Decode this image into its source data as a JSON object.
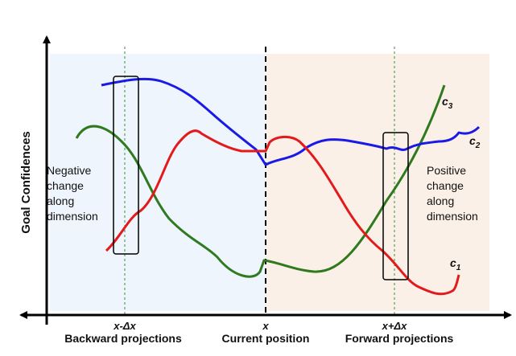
{
  "colors": {
    "backward_region": "#eef5fc",
    "forward_region": "#fbf0e7",
    "c1": "#e31a1c",
    "c2": "#1a1ae6",
    "c3": "#2f7a1f",
    "axis": "#000000",
    "guide": "#3a8f3a"
  },
  "axis": {
    "ylabel": "Goal Confidences"
  },
  "ticks": {
    "back": "x-Δx",
    "current": "x",
    "forward": "x+Δx"
  },
  "captions": {
    "back": "Backward projections",
    "current": "Current position",
    "forward": "Forward projections"
  },
  "annotations": {
    "negative": [
      "Negative",
      "change",
      "along",
      "dimension"
    ],
    "positive": [
      "Positive",
      "change",
      "along",
      "dimension"
    ]
  },
  "curves": {
    "c1": {
      "label_base": "c",
      "label_sub": "1"
    },
    "c2": {
      "label_base": "c",
      "label_sub": "2"
    },
    "c3": {
      "label_base": "c",
      "label_sub": "3"
    }
  }
}
